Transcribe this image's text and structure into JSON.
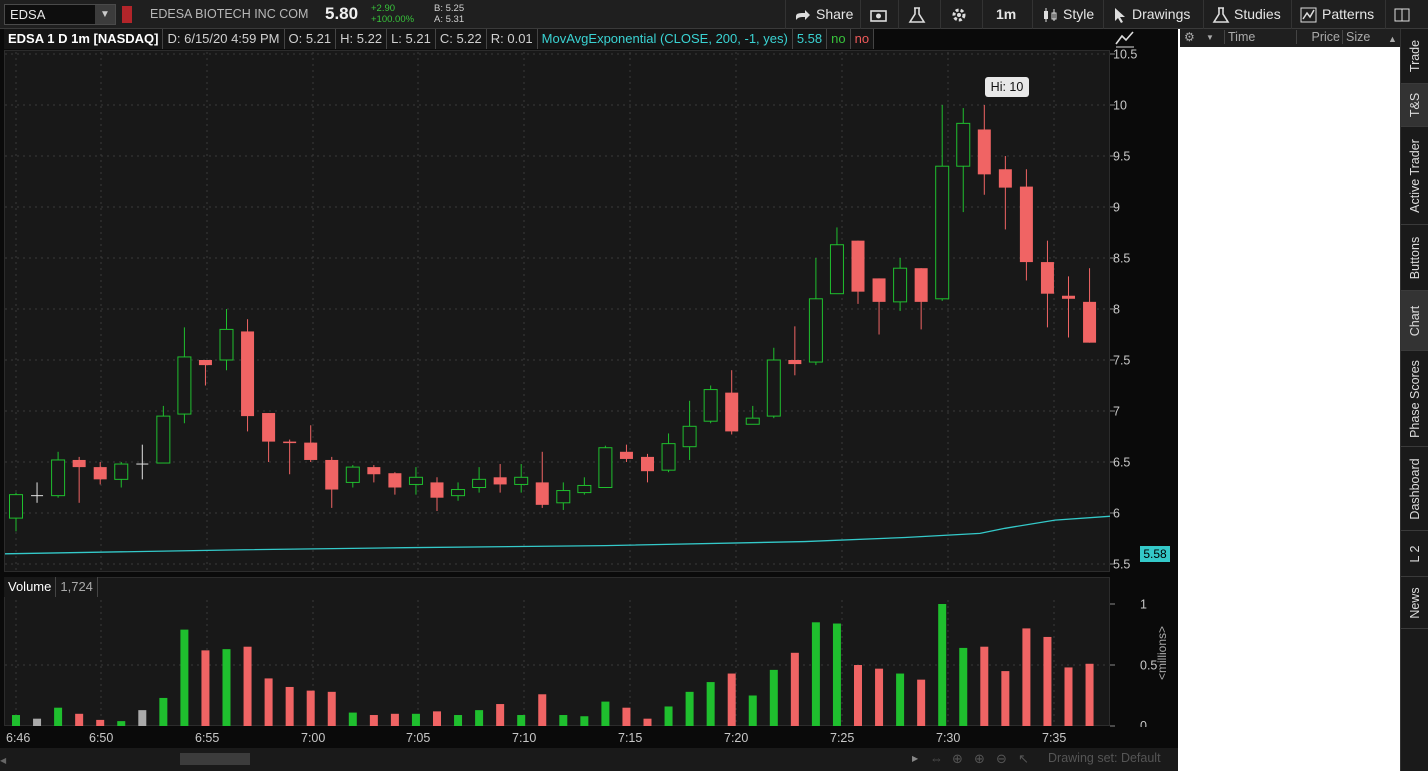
{
  "toolbar": {
    "symbol": "EDSA",
    "company": "EDESA BIOTECH INC COM",
    "last": "5.80",
    "change": "+2.90",
    "change_pct": "+100.00%",
    "bid": "B: 5.25",
    "ask": "A: 5.31",
    "share_label": "Share",
    "timeframe": "1m",
    "style_label": "Style",
    "drawings_label": "Drawings",
    "studies_label": "Studies",
    "patterns_label": "Patterns"
  },
  "infobar": {
    "title": "EDSA 1 D 1m [NASDAQ]",
    "date": "D: 6/15/20 4:59 PM",
    "open": "O: 5.21",
    "high": "H: 5.22",
    "low": "L: 5.21",
    "close": "C: 5.22",
    "range": "R: 0.01",
    "ma_label": "MovAvgExponential (CLOSE, 200, -1, yes)",
    "ma_value": "5.58",
    "no1": "no",
    "no2": "no"
  },
  "volume_header": {
    "label": "Volume",
    "value": "1,724"
  },
  "volume_axis_label": "<millions>",
  "hi_tooltip": "Hi: 10",
  "ma_badge": "5.58",
  "ts_header": {
    "time": "Time",
    "price": "Price",
    "size": "Size"
  },
  "sidebar_tabs": [
    "Trade",
    "T&S",
    "Active Trader",
    "Buttons",
    "Chart",
    "Phase Scores",
    "Dashboard",
    "L 2",
    "News"
  ],
  "drawing_set": "Drawing set: Default",
  "colors": {
    "up": "#1fbf2e",
    "down": "#f06464",
    "ma": "#34c9c9",
    "panel": "#181818"
  },
  "chart_data": {
    "type": "candlestick",
    "x_ticks": [
      "6:46",
      "6:50",
      "6:55",
      "7:00",
      "7:05",
      "7:10",
      "7:15",
      "7:20",
      "7:25",
      "7:30",
      "7:35"
    ],
    "y_ticks": [
      "10.5",
      "10",
      "9.5",
      "9",
      "8.5",
      "8",
      "7.5",
      "7",
      "6.5",
      "6",
      "5.5"
    ],
    "vol_ticks": [
      "1",
      "0.5",
      "0"
    ],
    "ylim": [
      5.5,
      10.5
    ],
    "candles": [
      {
        "t": "6:46",
        "o": 5.95,
        "h": 6.2,
        "l": 5.82,
        "c": 6.18
      },
      {
        "t": "6:47",
        "o": 6.17,
        "h": 6.3,
        "l": 6.1,
        "c": 6.17
      },
      {
        "t": "6:48",
        "o": 6.17,
        "h": 6.6,
        "l": 6.15,
        "c": 6.52
      },
      {
        "t": "6:49",
        "o": 6.52,
        "h": 6.55,
        "l": 6.1,
        "c": 6.45
      },
      {
        "t": "6:50",
        "o": 6.45,
        "h": 6.5,
        "l": 6.28,
        "c": 6.33
      },
      {
        "t": "6:51",
        "o": 6.33,
        "h": 6.5,
        "l": 6.25,
        "c": 6.48
      },
      {
        "t": "6:52",
        "o": 6.48,
        "h": 6.67,
        "l": 6.33,
        "c": 6.48
      },
      {
        "t": "6:53",
        "o": 6.49,
        "h": 7.05,
        "l": 6.49,
        "c": 6.95
      },
      {
        "t": "6:54",
        "o": 6.97,
        "h": 7.82,
        "l": 6.88,
        "c": 7.53
      },
      {
        "t": "6:55",
        "o": 7.5,
        "h": 7.5,
        "l": 7.25,
        "c": 7.45
      },
      {
        "t": "6:56",
        "o": 7.5,
        "h": 8.0,
        "l": 7.4,
        "c": 7.8
      },
      {
        "t": "6:57",
        "o": 7.78,
        "h": 7.9,
        "l": 6.8,
        "c": 6.95
      },
      {
        "t": "6:58",
        "o": 6.98,
        "h": 6.98,
        "l": 6.5,
        "c": 6.7
      },
      {
        "t": "6:59",
        "o": 6.7,
        "h": 6.72,
        "l": 6.38,
        "c": 6.69
      },
      {
        "t": "7:00",
        "o": 6.69,
        "h": 6.86,
        "l": 6.5,
        "c": 6.52
      },
      {
        "t": "7:01",
        "o": 6.52,
        "h": 6.55,
        "l": 6.05,
        "c": 6.23
      },
      {
        "t": "7:02",
        "o": 6.3,
        "h": 6.47,
        "l": 6.25,
        "c": 6.45
      },
      {
        "t": "7:03",
        "o": 6.45,
        "h": 6.47,
        "l": 6.3,
        "c": 6.38
      },
      {
        "t": "7:04",
        "o": 6.39,
        "h": 6.4,
        "l": 6.18,
        "c": 6.25
      },
      {
        "t": "7:05",
        "o": 6.28,
        "h": 6.45,
        "l": 6.18,
        "c": 6.35
      },
      {
        "t": "7:06",
        "o": 6.3,
        "h": 6.35,
        "l": 6.02,
        "c": 6.15
      },
      {
        "t": "7:07",
        "o": 6.17,
        "h": 6.3,
        "l": 6.12,
        "c": 6.23
      },
      {
        "t": "7:08",
        "o": 6.25,
        "h": 6.45,
        "l": 6.2,
        "c": 6.33
      },
      {
        "t": "7:09",
        "o": 6.35,
        "h": 6.48,
        "l": 6.2,
        "c": 6.28
      },
      {
        "t": "7:10",
        "o": 6.28,
        "h": 6.48,
        "l": 6.2,
        "c": 6.35
      },
      {
        "t": "7:11",
        "o": 6.3,
        "h": 6.6,
        "l": 6.05,
        "c": 6.08
      },
      {
        "t": "7:12",
        "o": 6.1,
        "h": 6.3,
        "l": 6.03,
        "c": 6.22
      },
      {
        "t": "7:13",
        "o": 6.2,
        "h": 6.35,
        "l": 6.18,
        "c": 6.27
      },
      {
        "t": "7:14",
        "o": 6.25,
        "h": 6.66,
        "l": 6.25,
        "c": 6.64
      },
      {
        "t": "7:15",
        "o": 6.6,
        "h": 6.67,
        "l": 6.5,
        "c": 6.53
      },
      {
        "t": "7:16",
        "o": 6.55,
        "h": 6.58,
        "l": 6.3,
        "c": 6.41
      },
      {
        "t": "7:17",
        "o": 6.42,
        "h": 6.78,
        "l": 6.4,
        "c": 6.68
      },
      {
        "t": "7:18",
        "o": 6.65,
        "h": 7.1,
        "l": 6.52,
        "c": 6.85
      },
      {
        "t": "7:19",
        "o": 6.9,
        "h": 7.25,
        "l": 6.88,
        "c": 7.21
      },
      {
        "t": "7:20",
        "o": 7.18,
        "h": 7.4,
        "l": 6.77,
        "c": 6.8
      },
      {
        "t": "7:21",
        "o": 6.87,
        "h": 7.05,
        "l": 6.87,
        "c": 6.93
      },
      {
        "t": "7:22",
        "o": 6.95,
        "h": 7.62,
        "l": 6.93,
        "c": 7.5
      },
      {
        "t": "7:23",
        "o": 7.5,
        "h": 7.83,
        "l": 7.35,
        "c": 7.46
      },
      {
        "t": "7:24",
        "o": 7.48,
        "h": 8.5,
        "l": 7.45,
        "c": 8.1
      },
      {
        "t": "7:25",
        "o": 8.15,
        "h": 8.8,
        "l": 8.15,
        "c": 8.63
      },
      {
        "t": "7:26",
        "o": 8.67,
        "h": 8.67,
        "l": 8.05,
        "c": 8.17
      },
      {
        "t": "7:27",
        "o": 8.3,
        "h": 8.3,
        "l": 7.75,
        "c": 8.07
      },
      {
        "t": "7:28",
        "o": 8.07,
        "h": 8.5,
        "l": 7.98,
        "c": 8.4
      },
      {
        "t": "7:29",
        "o": 8.4,
        "h": 8.4,
        "l": 7.8,
        "c": 8.07
      },
      {
        "t": "7:30",
        "o": 8.1,
        "h": 10.0,
        "l": 8.08,
        "c": 9.4
      },
      {
        "t": "7:31",
        "o": 9.4,
        "h": 9.97,
        "l": 8.95,
        "c": 9.82
      },
      {
        "t": "7:32",
        "o": 9.76,
        "h": 10.0,
        "l": 9.12,
        "c": 9.32
      },
      {
        "t": "7:33",
        "o": 9.37,
        "h": 9.5,
        "l": 8.78,
        "c": 9.19
      },
      {
        "t": "7:34",
        "o": 9.2,
        "h": 9.37,
        "l": 8.28,
        "c": 8.46
      },
      {
        "t": "7:35",
        "o": 8.46,
        "h": 8.67,
        "l": 7.82,
        "c": 8.15
      },
      {
        "t": "7:36",
        "o": 8.13,
        "h": 8.32,
        "l": 7.72,
        "c": 8.1
      },
      {
        "t": "7:37",
        "o": 8.07,
        "h": 8.4,
        "l": 7.67,
        "c": 7.67
      }
    ],
    "volume_millions": [
      0.09,
      0.06,
      0.15,
      0.1,
      0.05,
      0.04,
      0.13,
      0.23,
      0.79,
      0.62,
      0.63,
      0.65,
      0.39,
      0.32,
      0.29,
      0.28,
      0.11,
      0.09,
      0.1,
      0.1,
      0.12,
      0.09,
      0.13,
      0.18,
      0.09,
      0.26,
      0.09,
      0.08,
      0.2,
      0.15,
      0.06,
      0.16,
      0.28,
      0.36,
      0.43,
      0.25,
      0.46,
      0.6,
      0.85,
      0.84,
      0.5,
      0.47,
      0.43,
      0.38,
      1.0,
      0.64,
      0.65,
      0.45,
      0.8,
      0.73,
      0.48,
      0.51
    ],
    "ma_line": [
      [
        0,
        5.6
      ],
      [
        240,
        5.64
      ],
      [
        400,
        5.66
      ],
      [
        600,
        5.68
      ],
      [
        800,
        5.72
      ],
      [
        900,
        5.76
      ],
      [
        975,
        5.8
      ],
      [
        1000,
        5.85
      ],
      [
        1050,
        5.93
      ],
      [
        1108,
        5.97
      ]
    ]
  }
}
